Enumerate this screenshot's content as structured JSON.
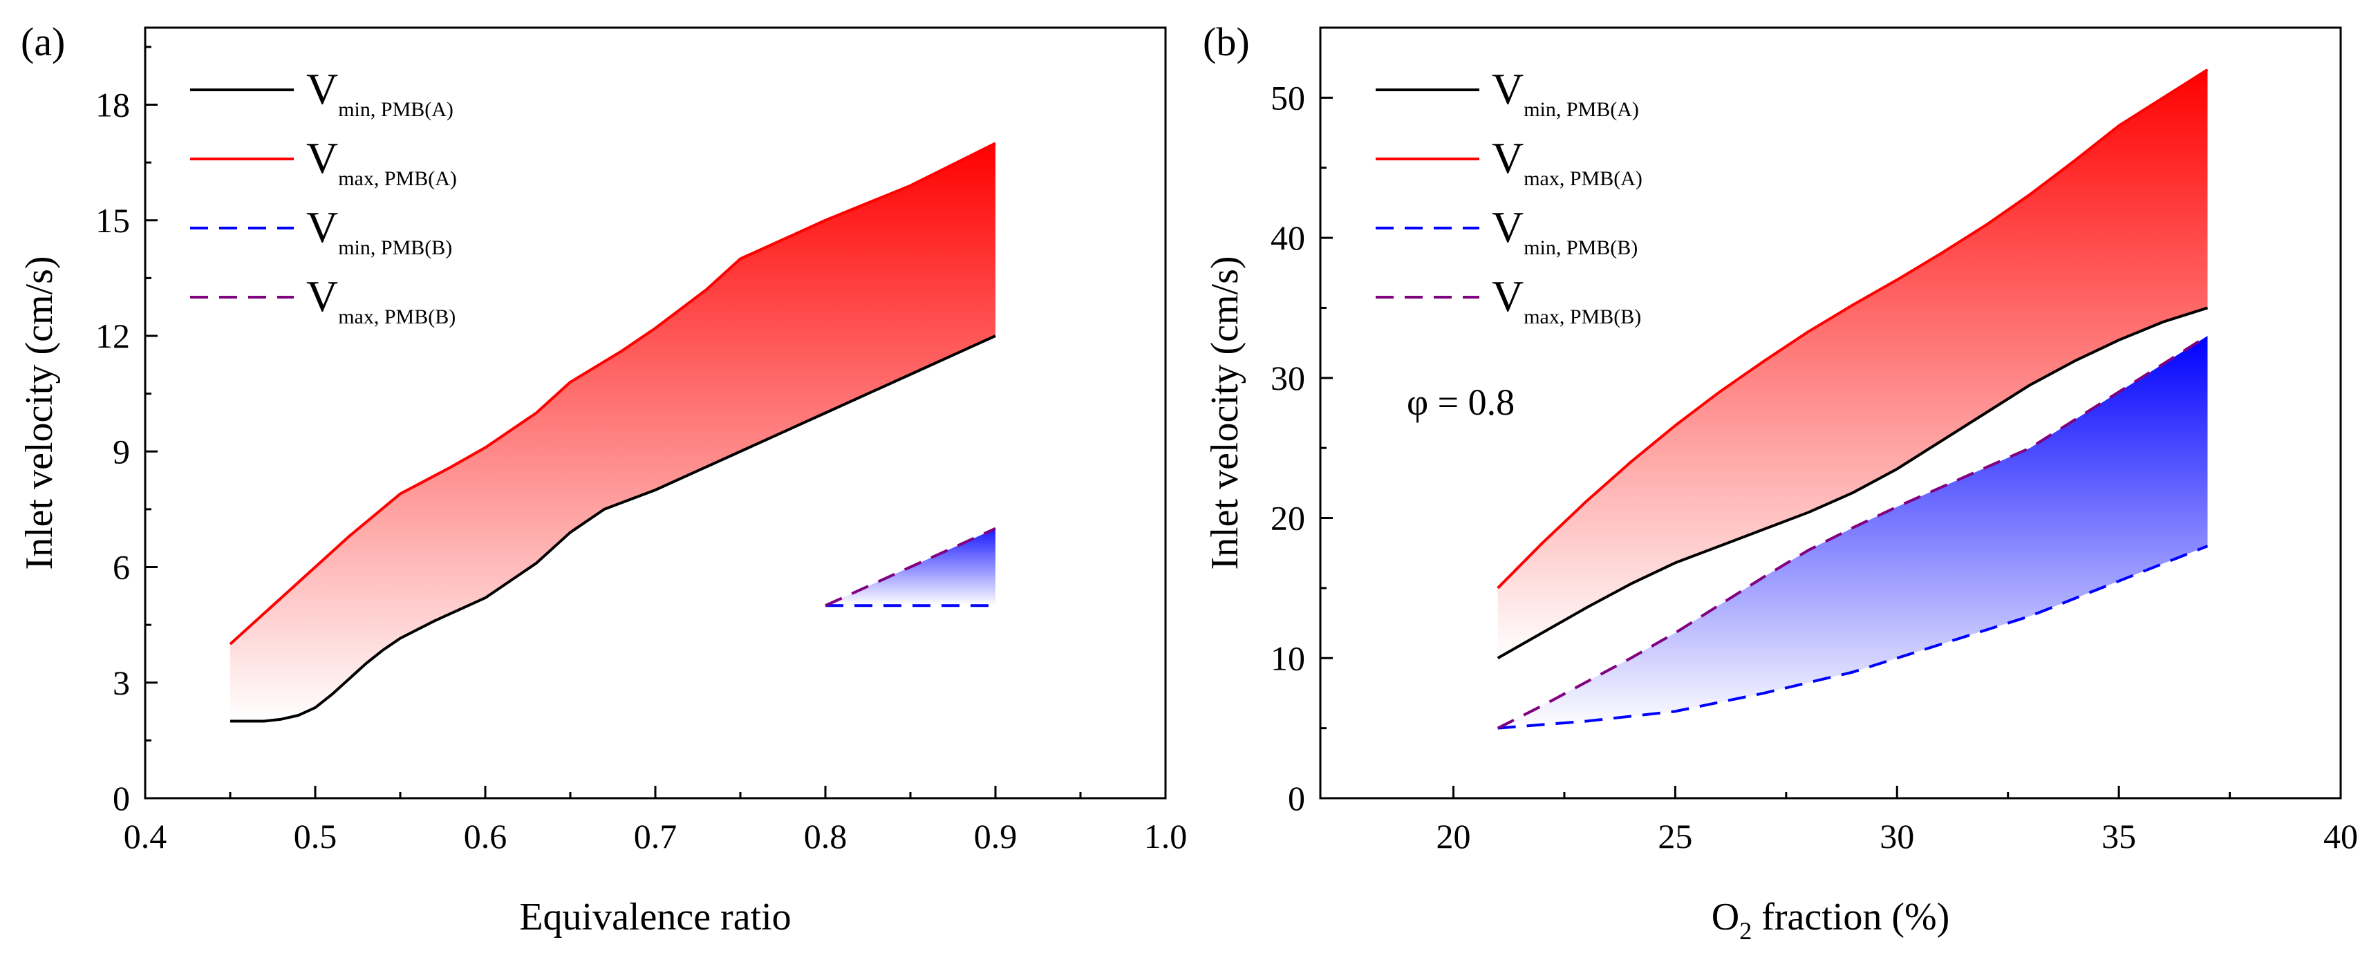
{
  "colors": {
    "vmin_A": "#000000",
    "vmax_A": "#ff0000",
    "vmin_B": "#0000ff",
    "vmax_B": "#800080",
    "fill_A_strong": "#ff0000",
    "fill_B_strong": "#0000ff"
  },
  "chart_data": [
    {
      "type": "line",
      "panel_label": "(a)",
      "title": "",
      "xlabel": "Equivalence ratio",
      "ylabel": "Inlet velocity (cm/s)",
      "xlim": [
        0.4,
        1.0
      ],
      "ylim": [
        0,
        20
      ],
      "xticks": [
        0.4,
        0.5,
        0.6,
        0.7,
        0.8,
        0.9,
        1.0
      ],
      "yticks": [
        0,
        3,
        6,
        9,
        12,
        15,
        18
      ],
      "xtick_labels": [
        "0.4",
        "0.5",
        "0.6",
        "0.7",
        "0.8",
        "0.9",
        "1.0"
      ],
      "ytick_labels": [
        "0",
        "3",
        "6",
        "9",
        "12",
        "15",
        "18"
      ],
      "grid": false,
      "legend_position": "top-left",
      "legend": [
        {
          "main": "V",
          "sub": "min, PMB(A)"
        },
        {
          "main": "V",
          "sub": "max, PMB(A)"
        },
        {
          "main": "V",
          "sub": "min, PMB(B)"
        },
        {
          "main": "V",
          "sub": "max, PMB(B)"
        }
      ],
      "annotation": "",
      "series": [
        {
          "name": "Vmin, PMB(A)",
          "style": "solid",
          "color_key": "vmin_A",
          "x": [
            0.45,
            0.46,
            0.47,
            0.48,
            0.49,
            0.5,
            0.51,
            0.52,
            0.53,
            0.54,
            0.55,
            0.57,
            0.6,
            0.63,
            0.65,
            0.67,
            0.7,
            0.75,
            0.8,
            0.85,
            0.9
          ],
          "y": [
            2.0,
            2.0,
            2.0,
            2.05,
            2.15,
            2.35,
            2.7,
            3.1,
            3.5,
            3.85,
            4.15,
            4.6,
            5.2,
            6.1,
            6.9,
            7.5,
            8.0,
            9.0,
            10.0,
            11.0,
            12.0
          ]
        },
        {
          "name": "Vmax, PMB(A)",
          "style": "solid",
          "color_key": "vmax_A",
          "x": [
            0.45,
            0.48,
            0.5,
            0.52,
            0.55,
            0.58,
            0.6,
            0.63,
            0.65,
            0.68,
            0.7,
            0.73,
            0.75,
            0.78,
            0.8,
            0.85,
            0.9
          ],
          "y": [
            4.0,
            5.2,
            6.0,
            6.8,
            7.9,
            8.6,
            9.1,
            10.0,
            10.8,
            11.6,
            12.2,
            13.2,
            14.0,
            14.6,
            15.0,
            15.9,
            17.0
          ]
        },
        {
          "name": "Vmin, PMB(B)",
          "style": "dashed",
          "color_key": "vmin_B",
          "x": [
            0.8,
            0.9
          ],
          "y": [
            5.0,
            5.0
          ]
        },
        {
          "name": "Vmax, PMB(B)",
          "style": "dashed",
          "color_key": "vmax_B",
          "x": [
            0.8,
            0.85,
            0.9
          ],
          "y": [
            5.0,
            6.0,
            7.0
          ]
        }
      ]
    },
    {
      "type": "line",
      "panel_label": "(b)",
      "title": "",
      "xlabel_main": "O",
      "xlabel_sub": "2",
      "xlabel_rest": " fraction (%)",
      "ylabel": "Inlet velocity (cm/s)",
      "xlim": [
        17,
        40
      ],
      "ylim": [
        0,
        55
      ],
      "xticks": [
        20,
        25,
        30,
        35,
        40
      ],
      "yticks": [
        0,
        10,
        20,
        30,
        40,
        50
      ],
      "xtick_labels": [
        "20",
        "25",
        "30",
        "35",
        "40"
      ],
      "ytick_labels": [
        "0",
        "10",
        "20",
        "30",
        "40",
        "50"
      ],
      "grid": false,
      "legend_position": "top-left",
      "legend": [
        {
          "main": "V",
          "sub": "min, PMB(A)"
        },
        {
          "main": "V",
          "sub": "max, PMB(A)"
        },
        {
          "main": "V",
          "sub": "min, PMB(B)"
        },
        {
          "main": "V",
          "sub": "max, PMB(B)"
        }
      ],
      "annotation": "φ = 0.8",
      "series": [
        {
          "name": "Vmin, PMB(A)",
          "style": "solid",
          "color_key": "vmin_A",
          "x": [
            21,
            22,
            23,
            24,
            25,
            26,
            27,
            28,
            29,
            30,
            31,
            32,
            33,
            34,
            35,
            36,
            37
          ],
          "y": [
            10.0,
            11.8,
            13.6,
            15.3,
            16.8,
            18.0,
            19.2,
            20.4,
            21.8,
            23.5,
            25.5,
            27.5,
            29.5,
            31.2,
            32.7,
            34.0,
            35.0
          ]
        },
        {
          "name": "Vmax, PMB(A)",
          "style": "solid",
          "color_key": "vmax_A",
          "x": [
            21,
            22,
            23,
            24,
            25,
            26,
            27,
            28,
            29,
            30,
            31,
            32,
            33,
            34,
            35,
            36,
            37
          ],
          "y": [
            15.0,
            18.2,
            21.2,
            24.0,
            26.6,
            29.0,
            31.2,
            33.3,
            35.2,
            37.0,
            38.9,
            40.9,
            43.1,
            45.5,
            48.0,
            50.0,
            52.0
          ]
        },
        {
          "name": "Vmin, PMB(B)",
          "style": "dashed",
          "color_key": "vmin_B",
          "x": [
            21,
            23,
            25,
            27,
            29,
            31,
            33,
            35,
            37
          ],
          "y": [
            5.0,
            5.5,
            6.2,
            7.5,
            9.0,
            11.0,
            13.0,
            15.5,
            18.0
          ]
        },
        {
          "name": "Vmax, PMB(B)",
          "style": "dashed",
          "color_key": "vmax_B",
          "x": [
            21,
            22,
            23,
            24,
            25,
            26,
            27,
            28,
            29,
            30,
            31,
            32,
            33,
            34,
            35,
            36,
            37
          ],
          "y": [
            5.0,
            6.6,
            8.3,
            10.0,
            11.8,
            13.8,
            15.8,
            17.7,
            19.3,
            20.8,
            22.2,
            23.6,
            25.0,
            27.0,
            29.0,
            31.0,
            33.0
          ]
        }
      ]
    }
  ]
}
